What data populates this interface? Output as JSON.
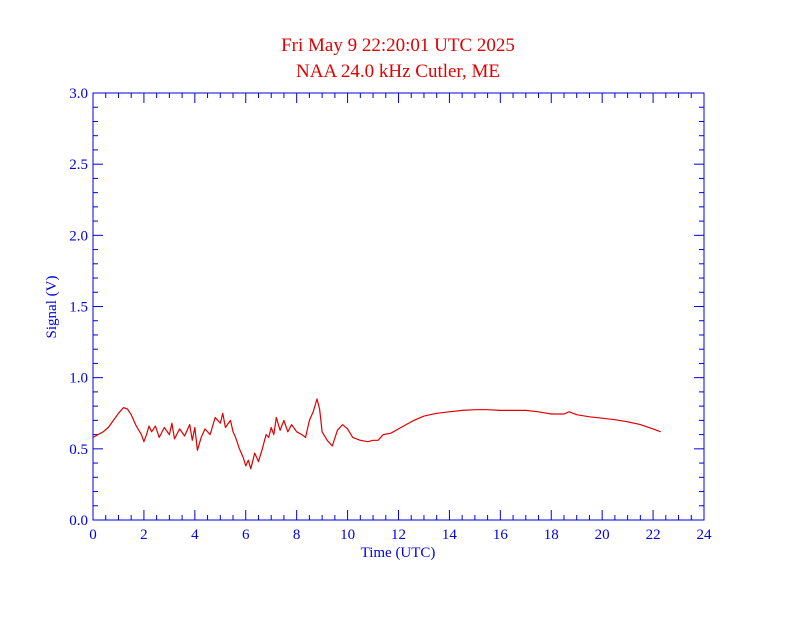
{
  "chart_data": {
    "type": "line",
    "title": "Fri May 9 22:20:01 UTC 2025",
    "subtitle": "NAA 24.0 kHz Cutler, ME",
    "xlabel": "Time (UTC)",
    "ylabel": "Signal (V)",
    "xlim": [
      0,
      24
    ],
    "ylim": [
      0.0,
      3.0
    ],
    "x_ticks": [
      0,
      2,
      4,
      6,
      8,
      10,
      12,
      14,
      16,
      18,
      20,
      22,
      24
    ],
    "x_tick_labels": [
      "0",
      "2",
      "4",
      "6",
      "8",
      "10",
      "12",
      "14",
      "16",
      "18",
      "20",
      "22",
      "24"
    ],
    "y_ticks": [
      0.0,
      0.5,
      1.0,
      1.5,
      2.0,
      2.5,
      3.0
    ],
    "y_tick_labels": [
      "0.0",
      "0.5",
      "1.0",
      "1.5",
      "2.0",
      "2.5",
      "3.0"
    ],
    "grid": false,
    "colors": {
      "title": "#e00000",
      "axes": "#0000e0",
      "series": "#e00000"
    },
    "series": [
      {
        "x": [
          0.0,
          0.2,
          0.4,
          0.6,
          0.8,
          1.0,
          1.2,
          1.35,
          1.5,
          1.7,
          1.9,
          2.0,
          2.1,
          2.2,
          2.3,
          2.45,
          2.6,
          2.8,
          3.0,
          3.1,
          3.2,
          3.4,
          3.6,
          3.8,
          3.9,
          4.0,
          4.1,
          4.25,
          4.4,
          4.6,
          4.8,
          5.0,
          5.1,
          5.2,
          5.4,
          5.5,
          5.6,
          5.75,
          5.9,
          6.0,
          6.1,
          6.2,
          6.35,
          6.5,
          6.65,
          6.8,
          6.9,
          7.0,
          7.1,
          7.2,
          7.35,
          7.5,
          7.65,
          7.8,
          8.0,
          8.2,
          8.35,
          8.5,
          8.65,
          8.8,
          8.9,
          9.0,
          9.2,
          9.4,
          9.6,
          9.8,
          10.0,
          10.2,
          10.5,
          10.8,
          11.0,
          11.2,
          11.4,
          11.7,
          12.0,
          12.3,
          12.6,
          13.0,
          13.5,
          14.0,
          14.5,
          15.0,
          15.5,
          16.0,
          16.5,
          17.0,
          17.5,
          18.0,
          18.5,
          18.7,
          19.0,
          19.5,
          20.0,
          20.5,
          21.0,
          21.5,
          22.0,
          22.3
        ],
        "values": [
          0.58,
          0.6,
          0.62,
          0.65,
          0.7,
          0.75,
          0.79,
          0.78,
          0.74,
          0.66,
          0.6,
          0.55,
          0.6,
          0.66,
          0.62,
          0.66,
          0.58,
          0.65,
          0.6,
          0.68,
          0.57,
          0.64,
          0.59,
          0.67,
          0.56,
          0.65,
          0.49,
          0.58,
          0.64,
          0.6,
          0.72,
          0.68,
          0.75,
          0.65,
          0.7,
          0.62,
          0.58,
          0.5,
          0.44,
          0.38,
          0.42,
          0.36,
          0.47,
          0.41,
          0.5,
          0.6,
          0.58,
          0.65,
          0.6,
          0.72,
          0.63,
          0.7,
          0.62,
          0.67,
          0.62,
          0.6,
          0.58,
          0.7,
          0.76,
          0.85,
          0.78,
          0.62,
          0.56,
          0.52,
          0.63,
          0.67,
          0.64,
          0.58,
          0.56,
          0.55,
          0.56,
          0.56,
          0.6,
          0.61,
          0.64,
          0.67,
          0.7,
          0.73,
          0.75,
          0.76,
          0.77,
          0.775,
          0.775,
          0.77,
          0.77,
          0.77,
          0.76,
          0.745,
          0.745,
          0.76,
          0.74,
          0.725,
          0.715,
          0.705,
          0.69,
          0.67,
          0.64,
          0.62
        ]
      }
    ]
  }
}
